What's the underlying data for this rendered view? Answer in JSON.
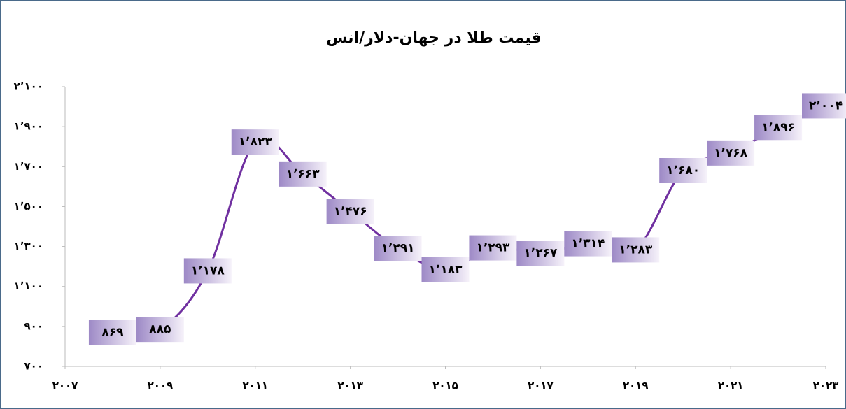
{
  "chart_data": {
    "type": "line",
    "title": "قیمت طلا در جهان-دلار/انس",
    "x": [
      2008,
      2009,
      2010,
      2011,
      2012,
      2013,
      2014,
      2015,
      2016,
      2017,
      2018,
      2019,
      2020,
      2021,
      2022,
      2023
    ],
    "series": [
      {
        "color": "#7030a0",
        "values": [
          869,
          885,
          1178,
          1823,
          1663,
          1476,
          1291,
          1183,
          1293,
          1267,
          1314,
          1283,
          1680,
          1768,
          1896,
          2004
        ],
        "value_labels": [
          "۸۶۹",
          "۸۸۵",
          "۱٬۱۷۸",
          "۱٬۸۲۳",
          "۱٬۶۶۳",
          "۱٬۴۷۶",
          "۱٬۲۹۱",
          "۱٬۱۸۳",
          "۱٬۲۹۳",
          "۱٬۲۶۷",
          "۱٬۳۱۴",
          "۱٬۲۸۳",
          "۱٬۶۸۰",
          "۱٬۷۶۸",
          "۱٬۸۹۶",
          "۲٬۰۰۴"
        ]
      }
    ],
    "xlim": [
      2007,
      2023
    ],
    "xticks": [
      {
        "value": 2007,
        "label": "۲۰۰۷"
      },
      {
        "value": 2009,
        "label": "۲۰۰۹"
      },
      {
        "value": 2011,
        "label": "۲۰۱۱"
      },
      {
        "value": 2013,
        "label": "۲۰۱۳"
      },
      {
        "value": 2015,
        "label": "۲۰۱۵"
      },
      {
        "value": 2017,
        "label": "۲۰۱۷"
      },
      {
        "value": 2019,
        "label": "۲۰۱۹"
      },
      {
        "value": 2021,
        "label": "۲۰۲۱"
      },
      {
        "value": 2023,
        "label": "۲۰۲۳"
      }
    ],
    "ylim": [
      700,
      2100
    ],
    "yticks": [
      {
        "value": 700,
        "label": "۷۰۰"
      },
      {
        "value": 900,
        "label": "۹۰۰"
      },
      {
        "value": 1100,
        "label": "۱٬۱۰۰"
      },
      {
        "value": 1300,
        "label": "۱٬۳۰۰"
      },
      {
        "value": 1500,
        "label": "۱٬۵۰۰"
      },
      {
        "value": 1700,
        "label": "۱٬۷۰۰"
      },
      {
        "value": 1900,
        "label": "۱٬۹۰۰"
      },
      {
        "value": 2100,
        "label": "۲٬۱۰۰"
      }
    ]
  }
}
